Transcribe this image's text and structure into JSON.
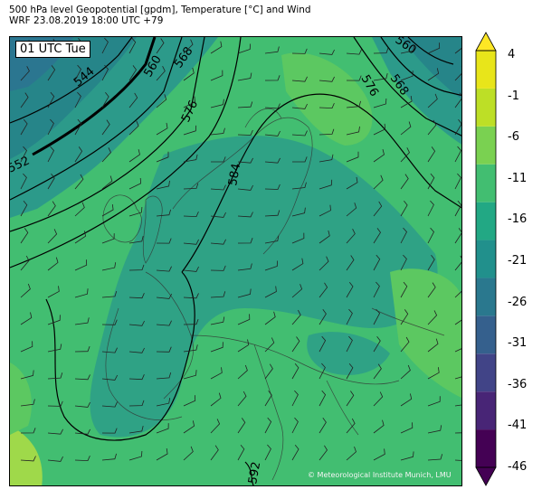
{
  "header": {
    "line1": "500 hPa level Geopotential [gpdm], Temperature [°C] and Wind",
    "line2": "WRF 23.08.2019 18:00 UTC +79"
  },
  "map": {
    "time_label": "01 UTC Tue",
    "credit": "© Meteorological Institute Munich, LMU",
    "contour_labels": [
      "544",
      "552",
      "560",
      "568",
      "576",
      "584",
      "592",
      "560",
      "568",
      "576"
    ]
  },
  "colorbar": {
    "ticks": [
      "4",
      "-1",
      "-6",
      "-11",
      "-16",
      "-21",
      "-26",
      "-31",
      "-36",
      "-41",
      "-46"
    ],
    "colors": [
      "#440154",
      "#482576",
      "#414487",
      "#35608d",
      "#2a788e",
      "#21908c",
      "#22a884",
      "#42be71",
      "#7ad151",
      "#bddf26",
      "#e8e51a"
    ]
  }
}
